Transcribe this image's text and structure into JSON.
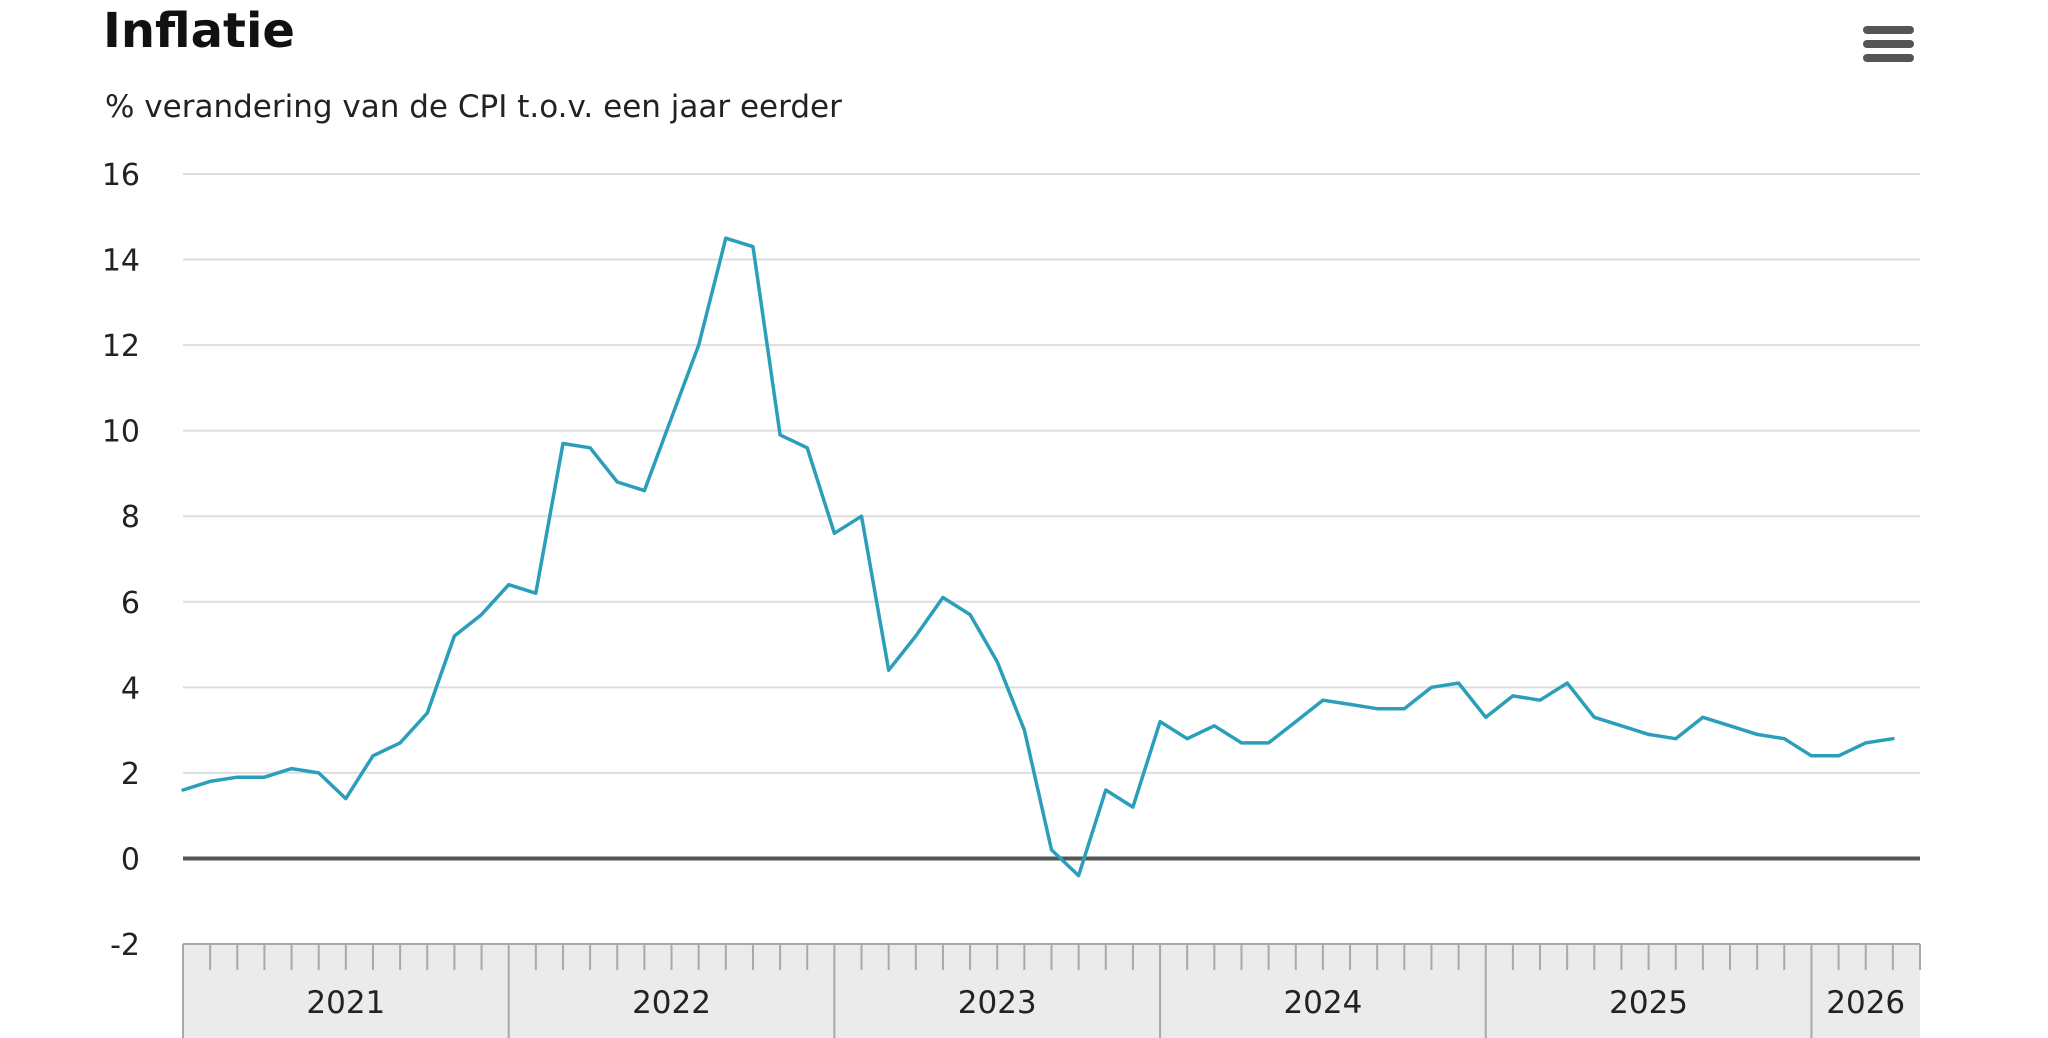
{
  "header": {
    "title": "Inflatie",
    "menu_icon": "hamburger-menu-icon"
  },
  "colors": {
    "series": "#2b9fb9",
    "zero_line": "#555555",
    "grid": "#dedede",
    "navigator_band": "#ebebeb"
  },
  "chart_data": {
    "type": "line",
    "title": "Inflatie",
    "subtitle": "% verandering van de CPI t.o.v. een jaar eerder",
    "xlabel": "",
    "ylabel": "",
    "ylim": [
      -2,
      16
    ],
    "yticks": [
      "16",
      "14",
      "12",
      "10",
      "8",
      "6",
      "4",
      "2",
      "0",
      "-2"
    ],
    "xlim": [
      "2021-01",
      "2026-05"
    ],
    "x_tick_labels": [
      "2021",
      "2022",
      "2023",
      "2024",
      "2025",
      "2026"
    ],
    "grid": true,
    "legend": "none",
    "series": [
      {
        "x": [
          "2021-01",
          "2021-02",
          "2021-03",
          "2021-04",
          "2021-05",
          "2021-06",
          "2021-07",
          "2021-08",
          "2021-09",
          "2021-10",
          "2021-11",
          "2021-12",
          "2022-01",
          "2022-02",
          "2022-03",
          "2022-04",
          "2022-05",
          "2022-06",
          "2022-07",
          "2022-08",
          "2022-09",
          "2022-10",
          "2022-11",
          "2022-12",
          "2023-01",
          "2023-02",
          "2023-03",
          "2023-04",
          "2023-05",
          "2023-06",
          "2023-07",
          "2023-08",
          "2023-09",
          "2023-10",
          "2023-11",
          "2023-12",
          "2024-01",
          "2024-02",
          "2024-03",
          "2024-04",
          "2024-05",
          "2024-06",
          "2024-07",
          "2024-08",
          "2024-09",
          "2024-10",
          "2024-11",
          "2024-12",
          "2025-01",
          "2025-02",
          "2025-03",
          "2025-04",
          "2025-05",
          "2025-06",
          "2025-07",
          "2025-08",
          "2025-09",
          "2025-10",
          "2025-11",
          "2025-12",
          "2026-01",
          "2026-02",
          "2026-03",
          "2026-04"
        ],
        "values": [
          1.6,
          1.8,
          1.9,
          1.9,
          2.1,
          2.0,
          1.4,
          2.4,
          2.7,
          3.4,
          5.2,
          5.7,
          6.4,
          6.2,
          9.7,
          9.6,
          8.8,
          8.6,
          10.3,
          12.0,
          14.5,
          14.3,
          9.9,
          9.6,
          7.6,
          8.0,
          4.4,
          5.2,
          6.1,
          5.7,
          4.6,
          3.0,
          0.2,
          -0.4,
          1.6,
          1.2,
          3.2,
          2.8,
          3.1,
          2.7,
          2.7,
          3.2,
          3.7,
          3.6,
          3.5,
          3.5,
          4.0,
          4.1,
          3.3,
          3.8,
          3.7,
          4.1,
          3.3,
          3.1,
          2.9,
          2.8,
          3.3,
          3.1,
          2.9,
          2.8,
          2.4,
          2.4,
          2.7,
          2.8
        ]
      }
    ]
  }
}
